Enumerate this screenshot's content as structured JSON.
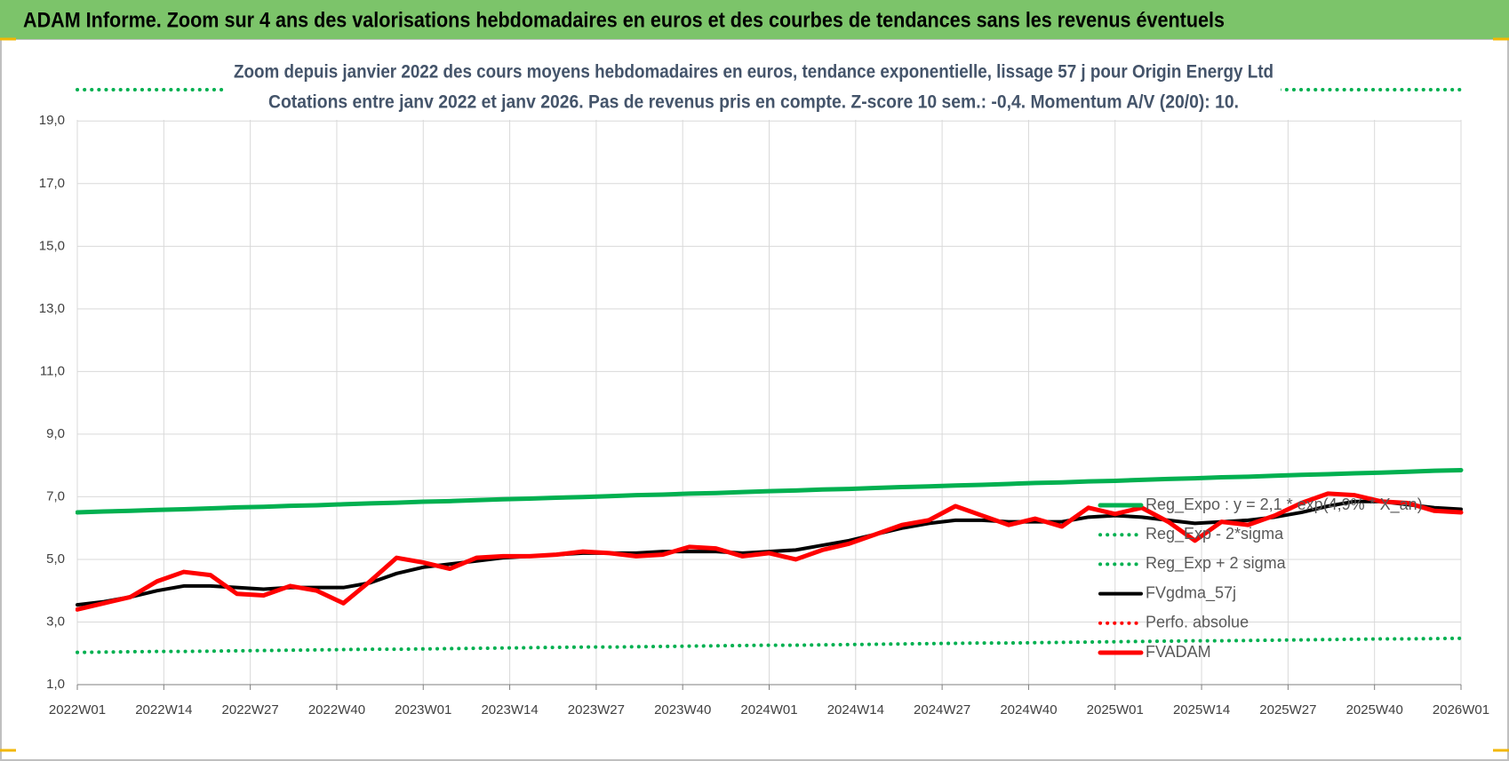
{
  "chart_data": {
    "type": "line",
    "title": "ADAM Informe. Zoom sur 4 ans des valorisations hebdomadaires en euros et des courbes de tendances sans les revenus éventuels",
    "subtitle": [
      "Zoom depuis janvier 2022 des cours moyens hebdomadaires en euros, tendance exponentielle, lissage 57 j pour Origin Energy Ltd",
      "Cotations entre janv 2022 et janv 2026. Pas de revenus pris en compte. Z-score 10 sem.: -0,4. Momentum A/V (20/0): 10."
    ],
    "x": [
      0,
      4,
      8,
      12,
      16,
      20,
      24,
      28,
      32,
      36,
      40,
      44,
      48,
      52,
      56,
      60,
      64,
      68,
      72,
      76,
      80,
      84,
      88,
      92,
      96,
      100,
      104,
      108,
      112,
      116,
      120,
      124,
      128,
      132,
      136,
      140,
      144,
      148,
      152,
      156,
      160,
      164,
      168,
      172,
      176,
      180,
      184,
      188,
      192,
      196,
      200,
      204,
      208
    ],
    "xlim": [
      0,
      208
    ],
    "xticks": [
      {
        "value": 0,
        "label": "2022W01"
      },
      {
        "value": 13,
        "label": "2022W14"
      },
      {
        "value": 26,
        "label": "2022W27"
      },
      {
        "value": 39,
        "label": "2022W40"
      },
      {
        "value": 52,
        "label": "2023W01"
      },
      {
        "value": 65,
        "label": "2023W14"
      },
      {
        "value": 78,
        "label": "2023W27"
      },
      {
        "value": 91,
        "label": "2023W40"
      },
      {
        "value": 104,
        "label": "2024W01"
      },
      {
        "value": 117,
        "label": "2024W14"
      },
      {
        "value": 130,
        "label": "2024W27"
      },
      {
        "value": 143,
        "label": "2024W40"
      },
      {
        "value": 156,
        "label": "2025W01"
      },
      {
        "value": 169,
        "label": "2025W14"
      },
      {
        "value": 182,
        "label": "2025W27"
      },
      {
        "value": 195,
        "label": "2025W40"
      },
      {
        "value": 208,
        "label": "2026W01"
      }
    ],
    "ylim": [
      1,
      20
    ],
    "yticks": [
      {
        "value": 1,
        "label": "1,0"
      },
      {
        "value": 3,
        "label": "3,0"
      },
      {
        "value": 5,
        "label": "5,0"
      },
      {
        "value": 7,
        "label": "7,0"
      },
      {
        "value": 9,
        "label": "9,0"
      },
      {
        "value": 11,
        "label": "11,0"
      },
      {
        "value": 13,
        "label": "13,0"
      },
      {
        "value": 15,
        "label": "15,0"
      },
      {
        "value": 17,
        "label": "17,0"
      },
      {
        "value": 19,
        "label": "19,0"
      }
    ],
    "grid": true,
    "legend": "right",
    "series": [
      {
        "name": "Reg_Expo : y = 2,1 * exp(4,9% * X_an)",
        "color": "#00b050",
        "style": "solid",
        "width": 5,
        "values": [
          6.5,
          6.53,
          6.55,
          6.58,
          6.6,
          6.63,
          6.66,
          6.68,
          6.71,
          6.73,
          6.76,
          6.79,
          6.81,
          6.84,
          6.86,
          6.89,
          6.92,
          6.94,
          6.97,
          6.99,
          7.02,
          7.05,
          7.07,
          7.1,
          7.12,
          7.15,
          7.18,
          7.2,
          7.23,
          7.25,
          7.28,
          7.31,
          7.33,
          7.36,
          7.38,
          7.41,
          7.44,
          7.46,
          7.49,
          7.51,
          7.54,
          7.57,
          7.59,
          7.62,
          7.64,
          7.67,
          7.7,
          7.72,
          7.75,
          7.77,
          7.8,
          7.83,
          7.85
        ]
      },
      {
        "name": "Reg_Exp - 2*sigma",
        "color": "#00b050",
        "style": "dotted",
        "width": 4,
        "values": [
          2.03,
          2.04,
          2.05,
          2.06,
          2.06,
          2.07,
          2.08,
          2.09,
          2.1,
          2.11,
          2.12,
          2.13,
          2.13,
          2.14,
          2.15,
          2.16,
          2.17,
          2.18,
          2.19,
          2.2,
          2.2,
          2.21,
          2.22,
          2.23,
          2.24,
          2.25,
          2.26,
          2.26,
          2.27,
          2.28,
          2.29,
          2.3,
          2.31,
          2.32,
          2.33,
          2.33,
          2.34,
          2.35,
          2.36,
          2.37,
          2.38,
          2.39,
          2.4,
          2.4,
          2.41,
          2.42,
          2.43,
          2.44,
          2.45,
          2.46,
          2.46,
          2.47,
          2.48
        ]
      },
      {
        "name": "Reg_Exp + 2 sigma",
        "color": "#00b050",
        "style": "dotted",
        "width": 4,
        "values": [
          20,
          20,
          20,
          20,
          20,
          20,
          20,
          20,
          20,
          20,
          20,
          20,
          20,
          20,
          20,
          20,
          20,
          20,
          20,
          20,
          20,
          20,
          20,
          20,
          20,
          20,
          20,
          20,
          20,
          20,
          20,
          20,
          20,
          20,
          20,
          20,
          20,
          20,
          20,
          20,
          20,
          20,
          20,
          20,
          20,
          20,
          20,
          20,
          20,
          20,
          20,
          20,
          20
        ]
      },
      {
        "name": "FVgdma_57j",
        "color": "#000000",
        "style": "solid",
        "width": 4,
        "values": [
          3.55,
          3.65,
          3.8,
          4.0,
          4.15,
          4.15,
          4.1,
          4.05,
          4.1,
          4.1,
          4.1,
          4.25,
          4.55,
          4.75,
          4.85,
          4.95,
          5.05,
          5.1,
          5.15,
          5.2,
          5.2,
          5.2,
          5.25,
          5.25,
          5.25,
          5.2,
          5.25,
          5.3,
          5.45,
          5.6,
          5.8,
          6.0,
          6.15,
          6.25,
          6.25,
          6.2,
          6.2,
          6.2,
          6.35,
          6.4,
          6.35,
          6.25,
          6.15,
          6.2,
          6.25,
          6.35,
          6.5,
          6.7,
          6.85,
          6.85,
          6.75,
          6.65,
          6.6
        ]
      },
      {
        "name": "Perfo. absolue",
        "color": "#ff0000",
        "style": "dotted",
        "width": 4,
        "values": [
          null,
          null,
          null,
          null,
          null,
          null,
          null,
          null,
          null,
          null,
          null,
          null,
          null,
          null,
          null,
          null,
          null,
          null,
          null,
          null,
          null,
          null,
          null,
          null,
          null,
          null,
          null,
          null,
          null,
          null,
          null,
          null,
          null,
          null,
          null,
          null,
          null,
          null,
          null,
          null,
          null,
          null,
          null,
          null,
          null,
          null,
          null,
          null,
          null,
          null,
          null,
          null,
          null
        ]
      },
      {
        "name": "FVADAM",
        "color": "#ff0000",
        "style": "solid",
        "width": 5,
        "values": [
          3.4,
          3.6,
          3.8,
          4.3,
          4.6,
          4.5,
          3.9,
          3.85,
          4.15,
          4.0,
          3.6,
          4.3,
          5.05,
          4.9,
          4.7,
          5.05,
          5.1,
          5.1,
          5.15,
          5.25,
          5.2,
          5.1,
          5.15,
          5.4,
          5.35,
          5.1,
          5.2,
          5.0,
          5.3,
          5.5,
          5.8,
          6.1,
          6.25,
          6.7,
          6.4,
          6.1,
          6.3,
          6.05,
          6.65,
          6.45,
          6.65,
          6.2,
          5.6,
          6.2,
          6.1,
          6.4,
          6.8,
          7.1,
          7.05,
          6.85,
          6.8,
          6.55,
          6.5
        ]
      }
    ]
  }
}
